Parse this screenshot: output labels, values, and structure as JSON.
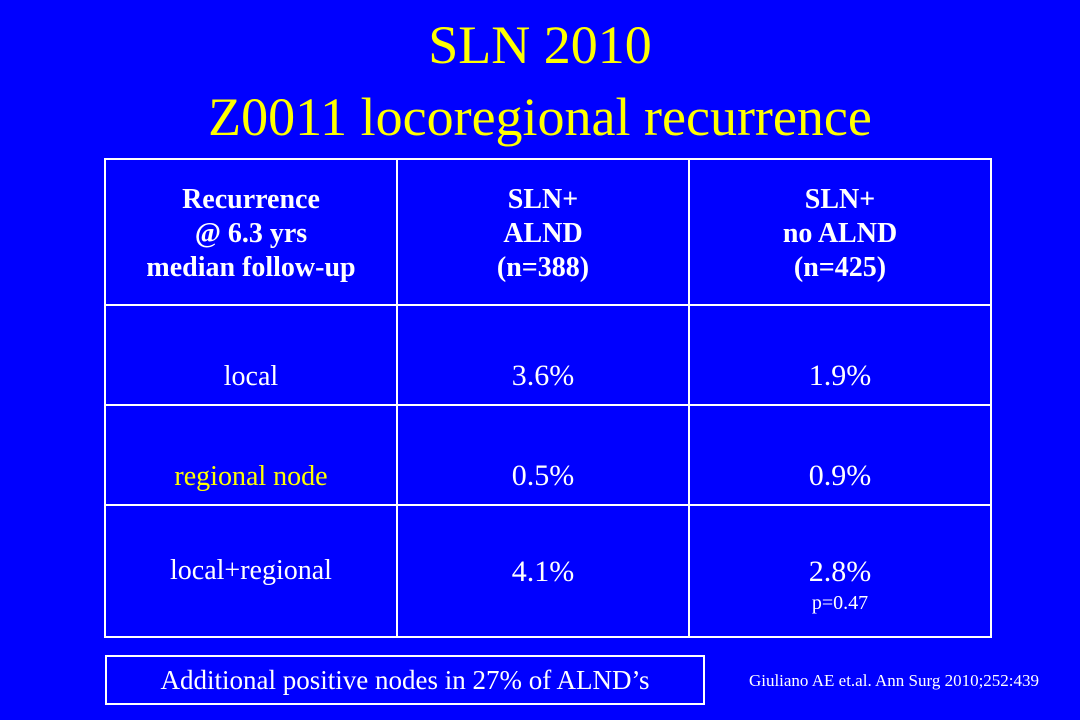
{
  "title": {
    "line1": "SLN 2010",
    "line2": "Z0011 locoregional recurrence"
  },
  "table": {
    "header": {
      "col1": [
        "Recurrence",
        "@ 6.3 yrs",
        "median follow-up"
      ],
      "col2": [
        "SLN+",
        "ALND",
        "(n=388)"
      ],
      "col3": [
        "SLN+",
        "no ALND",
        "(n=425)"
      ]
    },
    "rows": [
      {
        "label": "local",
        "alnd": "3.6%",
        "no_alnd": "1.9%"
      },
      {
        "label": "regional node",
        "alnd": "0.5%",
        "no_alnd": "0.9%"
      },
      {
        "label": "local+regional",
        "alnd": "4.1%",
        "no_alnd": "2.8%",
        "p_value": "p=0.47"
      }
    ]
  },
  "note": "Additional positive nodes in 27% of ALND’s",
  "citation": "Giuliano AE et.al. Ann Surg 2010;252:439",
  "colors": {
    "background": "#0000ff",
    "title": "#ffff00",
    "text": "#ffffff",
    "highlight": "#ffff00"
  }
}
